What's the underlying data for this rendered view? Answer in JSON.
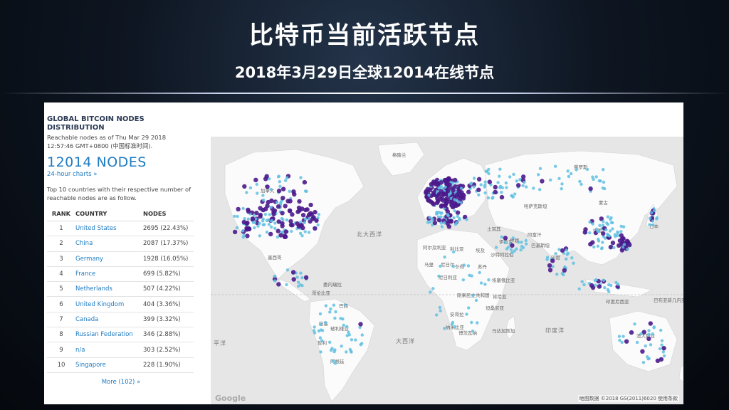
{
  "slide": {
    "title": "比特币当前活跃节点",
    "subtitle": "2018年3月29日全球12014在线节点"
  },
  "panel": {
    "heading_line1": "GLOBAL BITCOIN NODES",
    "heading_line2": "DISTRIBUTION",
    "asof_line1": "Reachable nodes as of Thu Mar 29 2018",
    "asof_line2": "12:57:46 GMT+0800 (中国标准时间).",
    "node_count": "12014 NODES",
    "charts_link": "24-hour charts »",
    "top10_text": "Top 10 countries with their respective number of reachable nodes are as follow.",
    "columns": {
      "rank": "RANK",
      "country": "COUNTRY",
      "nodes": "NODES"
    },
    "rows": [
      {
        "rank": "1",
        "country": "United States",
        "nodes": "2695 (22.43%)"
      },
      {
        "rank": "2",
        "country": "China",
        "nodes": "2087 (17.37%)"
      },
      {
        "rank": "3",
        "country": "Germany",
        "nodes": "1928 (16.05%)"
      },
      {
        "rank": "4",
        "country": "France",
        "nodes": "699 (5.82%)"
      },
      {
        "rank": "5",
        "country": "Netherlands",
        "nodes": "507 (4.22%)"
      },
      {
        "rank": "6",
        "country": "United Kingdom",
        "nodes": "404 (3.36%)"
      },
      {
        "rank": "7",
        "country": "Canada",
        "nodes": "399 (3.32%)"
      },
      {
        "rank": "8",
        "country": "Russian Federation",
        "nodes": "346 (2.88%)"
      },
      {
        "rank": "9",
        "country": "n/a",
        "nodes": "303 (2.52%)"
      },
      {
        "rank": "10",
        "country": "Singapore",
        "nodes": "228 (1.90%)"
      }
    ],
    "more_link": "More (102) »"
  },
  "map": {
    "labels": {
      "north_atlantic": "北大西洋",
      "south_atlantic": "大西洋",
      "indian_ocean": "印度洋",
      "pacific": "平洋",
      "canada": "加拿大",
      "russia": "俄罗斯",
      "kazakhstan": "哈萨克斯坦",
      "china": "中国",
      "japan": "日本",
      "india": "印度",
      "iran": "伊朗",
      "brazil": "巴西",
      "australia": "澳大利亚",
      "algeria": "阿尔及利亚",
      "libya": "利比亚",
      "egypt": "埃及",
      "saudi": "沙特阿拉伯",
      "mali": "马里",
      "niger": "尼日尔",
      "chad": "乍得",
      "sudan": "苏丹",
      "nigeria": "尼日利亚",
      "ethiopia": "埃塞俄比亚",
      "drc": "刚果民主共和国",
      "kenya": "肯尼亚",
      "tanzania": "坦桑尼亚",
      "angola": "安哥拉",
      "namibia": "纳米比亚",
      "botswana": "博茨瓦纳",
      "madagascar": "马达加斯加",
      "peru": "秘鲁",
      "bolivia": "玻利维亚",
      "chile": "智利",
      "argentina": "阿根廷",
      "venezuela": "委内瑞拉",
      "colombia": "哥伦比亚",
      "mexico": "墨西哥",
      "indonesia": "印度尼西亚",
      "png": "巴布亚新几内亚",
      "turkey": "土耳其",
      "iraq": "伊拉克",
      "afghanistan": "阿富汗",
      "pakistan": "巴基斯坦",
      "mongolia": "蒙古",
      "greenland": "格陵兰"
    },
    "attribution": "地图数据 ©2018 GS(2011)6020   使用条款",
    "google_logo": "Google"
  },
  "colors": {
    "node_dense": "#4b1a8c",
    "node_sparse": "#5fc0e0",
    "link": "#1f7bc1"
  }
}
